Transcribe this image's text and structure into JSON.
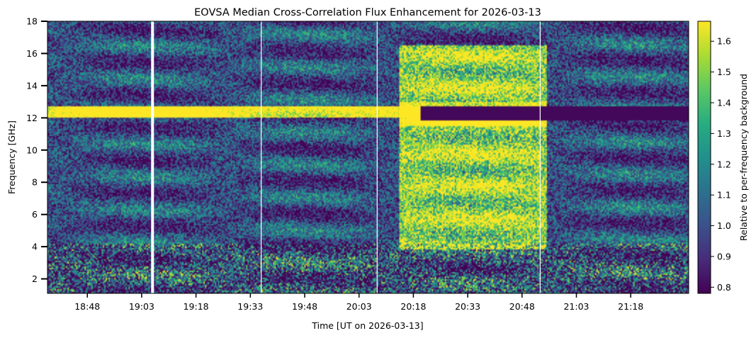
{
  "chart_data": {
    "type": "heatmap",
    "title": "EOVSA Median Cross-Correlation Flux Enhancement for 2026-03-13",
    "xlabel": "Time [UT on 2026-03-13]",
    "ylabel": "Frequency [GHz]",
    "colorbar_label": "Relative to per-frequency background",
    "colormap": "viridis",
    "colormap_colors": [
      "#440154",
      "#472c7a",
      "#3b518b",
      "#2c718e",
      "#21908d",
      "#27ad81",
      "#5cc863",
      "#aadc32",
      "#fde725"
    ],
    "x_range": [
      "18:37",
      "21:34"
    ],
    "x_ticks": [
      "18:48",
      "19:03",
      "19:18",
      "19:33",
      "19:48",
      "20:03",
      "20:18",
      "20:33",
      "20:48",
      "21:03",
      "21:18"
    ],
    "y_range": [
      1.1,
      18.0
    ],
    "y_ticks": [
      2,
      4,
      6,
      8,
      10,
      12,
      14,
      16,
      18
    ],
    "color_range": [
      0.78,
      1.665
    ],
    "colorbar_ticks": [
      0.8,
      0.9,
      1.0,
      1.1,
      1.2,
      1.3,
      1.4,
      1.5,
      1.6
    ],
    "data_gaps": [
      "19:06",
      "19:36",
      "20:08",
      "20:53"
    ],
    "features": [
      {
        "start": "20:14",
        "end": "20:55",
        "freq_range": [
          3.8,
          16.5
        ],
        "level": "high"
      },
      {
        "start": "18:37",
        "end": "20:20",
        "freq_range": [
          12.0,
          12.7
        ],
        "level": "high"
      },
      {
        "start": "20:20",
        "end": "21:34",
        "freq_range": [
          11.8,
          12.7
        ],
        "level": "low"
      }
    ]
  }
}
